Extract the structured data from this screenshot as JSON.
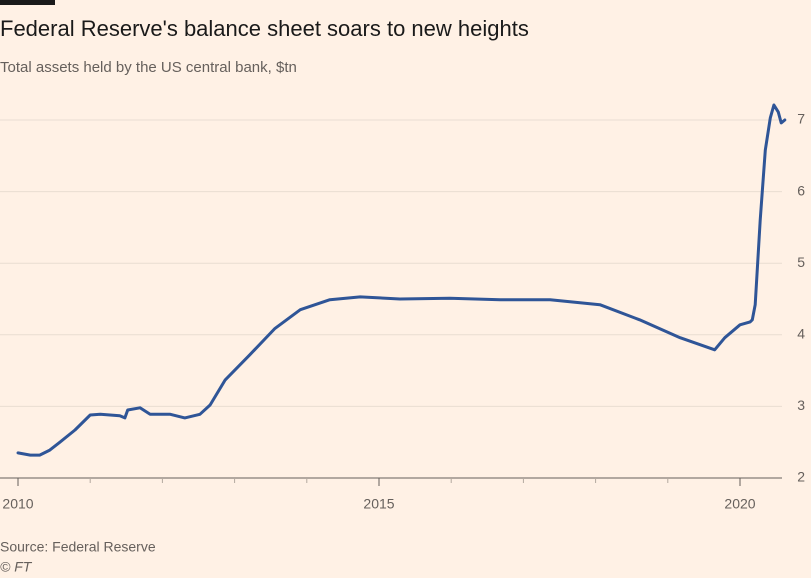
{
  "chart_data": {
    "type": "line",
    "title": "Federal Reserve's balance sheet soars to new heights",
    "subtitle": "Total assets held by the US central bank, $tn",
    "source": "Source: Federal Reserve",
    "credit": "© FT",
    "x": [
      2010.0,
      2010.17,
      2010.3,
      2010.44,
      2010.58,
      2010.79,
      2011.0,
      2011.14,
      2011.41,
      2011.48,
      2011.52,
      2011.69,
      2011.83,
      2012.11,
      2012.31,
      2012.52,
      2012.66,
      2012.87,
      2013.21,
      2013.56,
      2013.91,
      2014.32,
      2014.74,
      2015.29,
      2015.98,
      2016.68,
      2017.37,
      2018.06,
      2018.61,
      2019.17,
      2019.65,
      2019.79,
      2020.0,
      2020.14,
      2020.17,
      2020.21,
      2020.28,
      2020.35,
      2020.42,
      2020.47,
      2020.53,
      2020.57,
      2020.62
    ],
    "series": [
      {
        "color": "#2f5597",
        "values": [
          2.35,
          2.32,
          2.32,
          2.39,
          2.5,
          2.67,
          2.88,
          2.89,
          2.87,
          2.84,
          2.95,
          2.98,
          2.89,
          2.89,
          2.84,
          2.89,
          3.02,
          3.37,
          3.72,
          4.09,
          4.35,
          4.49,
          4.53,
          4.5,
          4.51,
          4.49,
          4.49,
          4.42,
          4.21,
          3.96,
          3.79,
          3.96,
          4.14,
          4.18,
          4.21,
          4.42,
          5.6,
          6.58,
          7.03,
          7.21,
          7.11,
          6.96,
          7.0
        ]
      }
    ],
    "xlim": [
      2010,
      2020.8
    ],
    "xticks": [
      2010,
      2015,
      2020
    ],
    "xminorticks": [
      2011,
      2012,
      2013,
      2014,
      2016,
      2017,
      2018,
      2019
    ],
    "ylim": [
      2,
      7.3
    ],
    "yticks": [
      2,
      3,
      4,
      5,
      6,
      7
    ],
    "grid": true
  }
}
